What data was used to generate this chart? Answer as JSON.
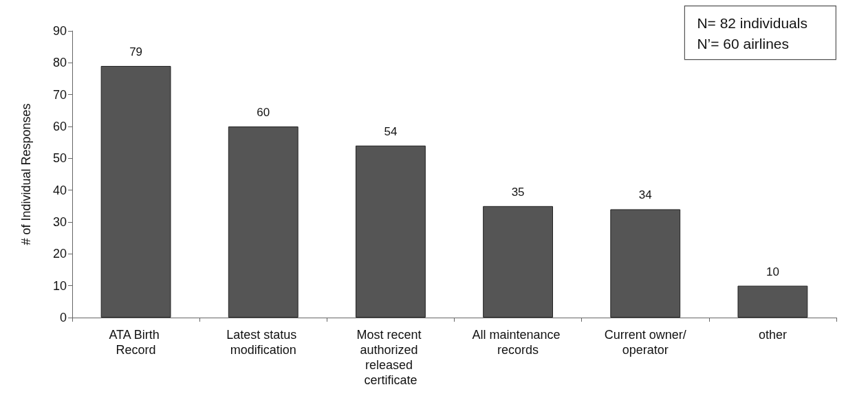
{
  "chart_data": {
    "type": "bar",
    "ylabel": "# of Individual Responses",
    "categories": [
      "ATA Birth Record",
      "Latest status modification",
      "Most recent authorized released certificate",
      "All maintenance records",
      "Current owner/operator",
      "other"
    ],
    "values": [
      79,
      60,
      54,
      35,
      34,
      10
    ],
    "color": "#555555",
    "ylim": [
      0,
      90
    ],
    "yticks": [
      0,
      10,
      20,
      30,
      40,
      50,
      60,
      70,
      80,
      90
    ],
    "grid": false,
    "data_labels": true,
    "annotations": [
      "N= 82 individuals",
      "N’= 60 airlines"
    ]
  }
}
